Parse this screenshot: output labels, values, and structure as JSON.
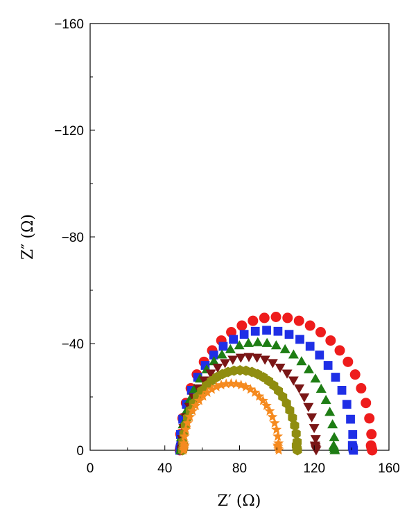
{
  "chart_data": {
    "type": "scatter",
    "title": "",
    "xlabel": "Z′ (Ω)",
    "ylabel": "Z″ (Ω)",
    "xlim": [
      0,
      160
    ],
    "ylim": [
      0,
      -160
    ],
    "xticks": [
      0,
      40,
      80,
      120,
      160
    ],
    "xtick_labels": [
      "0",
      "40",
      "80",
      "120",
      "160"
    ],
    "yticks": [
      0,
      -40,
      -80,
      -120,
      -160
    ],
    "ytick_labels": [
      "0",
      "−40",
      "−80",
      "−120",
      "−160"
    ],
    "grid": false,
    "legend": "none",
    "series": [
      {
        "marker": "circle",
        "color": "#ee1c1c",
        "z_start": 48,
        "z_end": 151,
        "peak": -50,
        "points": 26
      },
      {
        "marker": "square",
        "color": "#1f2fe6",
        "z_start": 48,
        "z_end": 141,
        "peak": -45,
        "points": 24
      },
      {
        "marker": "triangle-up",
        "color": "#1e7d14",
        "z_start": 48.5,
        "z_end": 131,
        "peak": -40.5,
        "points": 26
      },
      {
        "marker": "triangle-down",
        "color": "#7a1616",
        "z_start": 49,
        "z_end": 121,
        "peak": -35,
        "points": 26
      },
      {
        "marker": "hexagon",
        "color": "#8f8d10",
        "z_start": 49.5,
        "z_end": 111,
        "peak": -30,
        "points": 30
      },
      {
        "marker": "star",
        "color": "#f58a1f",
        "z_start": 50,
        "z_end": 101,
        "peak": -25,
        "points": 30
      }
    ]
  }
}
